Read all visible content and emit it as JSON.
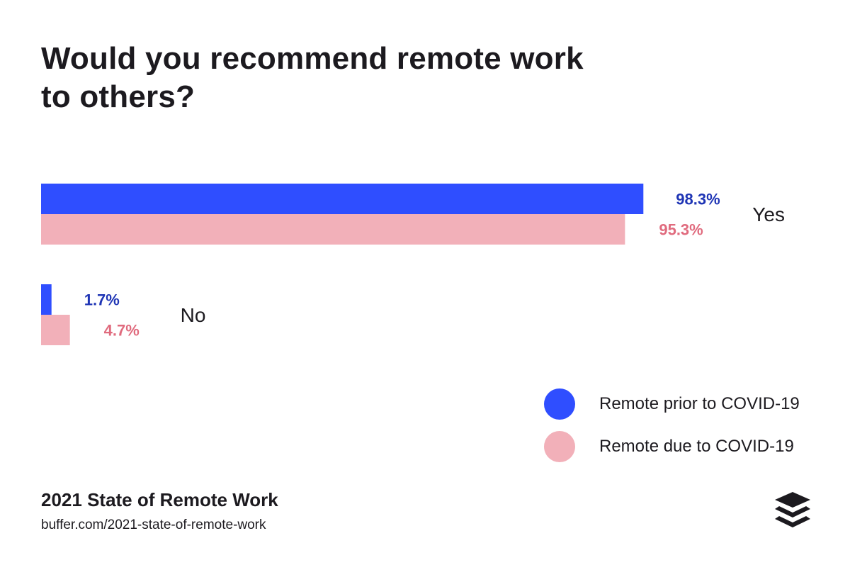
{
  "title": "Would you recommend remote work to others?",
  "chart_data": {
    "type": "bar",
    "orientation": "horizontal",
    "categories": [
      "Yes",
      "No"
    ],
    "series": [
      {
        "name": "Remote prior to COVID-19",
        "values": [
          98.3,
          1.7
        ],
        "labels": [
          "98.3%",
          "1.7%"
        ],
        "color": "#2f4eff",
        "label_color": "#1f35b5"
      },
      {
        "name": "Remote due to COVID-19",
        "values": [
          95.3,
          4.7
        ],
        "labels": [
          "95.3%",
          "4.7%"
        ],
        "color": "#f2b0b9",
        "label_color": "#e06b7e"
      }
    ],
    "xlim": [
      0,
      100
    ],
    "grid": false,
    "legend_position": "bottom-right"
  },
  "legend": {
    "items": [
      {
        "label": "Remote prior to COVID-19",
        "color": "#2f4eff"
      },
      {
        "label": "Remote due to COVID-19",
        "color": "#f2b0b9"
      }
    ]
  },
  "footer": {
    "title": "2021 State of Remote Work",
    "url": "buffer.com/2021-state-of-remote-work"
  },
  "logo": {
    "icon": "buffer-stack-icon",
    "color": "#1c1a1f"
  }
}
